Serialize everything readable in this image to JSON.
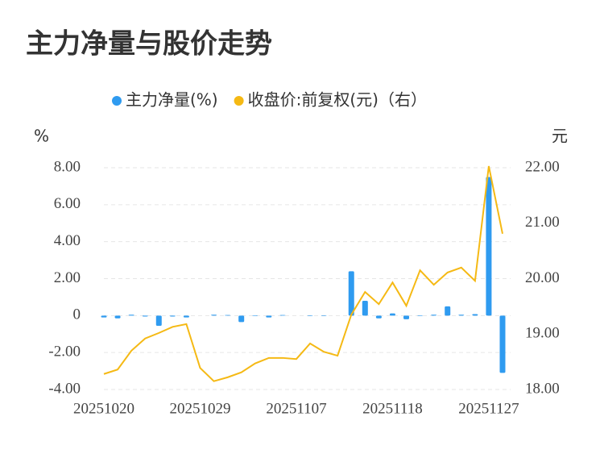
{
  "chart_data": {
    "type": "bar-line",
    "title": "主力净量与股价走势",
    "y_label": "%",
    "y2_label": "元",
    "categories": [
      "20251020",
      null,
      null,
      null,
      null,
      null,
      null,
      "20251029",
      null,
      null,
      null,
      null,
      null,
      null,
      "20251107",
      null,
      null,
      null,
      null,
      null,
      null,
      "20251118",
      null,
      null,
      null,
      null,
      null,
      null,
      "20251127",
      null
    ],
    "series": [
      {
        "name": "主力净量(%)",
        "type": "bar",
        "color": "#2f9bf0",
        "values": [
          -0.1,
          -0.15,
          0.05,
          -0.05,
          -0.55,
          -0.05,
          -0.1,
          0,
          0.05,
          0.03,
          -0.35,
          -0.03,
          -0.1,
          0.03,
          0,
          -0.03,
          -0.03,
          0,
          2.4,
          0.8,
          -0.15,
          0.12,
          -0.2,
          -0.03,
          0.05,
          0.5,
          0.05,
          0.08,
          7.5,
          -3.1
        ]
      },
      {
        "name": "收盘价:前复权(元)（右）",
        "type": "line",
        "axis": "y2",
        "color": "#f5b914",
        "values": [
          18.28,
          18.36,
          18.7,
          18.92,
          19.02,
          19.13,
          19.18,
          18.39,
          18.15,
          18.22,
          18.31,
          18.47,
          18.57,
          18.57,
          18.55,
          18.83,
          18.68,
          18.61,
          19.35,
          19.76,
          19.54,
          19.93,
          19.51,
          20.15,
          19.89,
          20.11,
          20.2,
          19.96,
          22.03,
          20.81
        ]
      }
    ],
    "ylim": [
      -4,
      8
    ],
    "yticks": [
      {
        "value": -4,
        "label": "-4.00"
      },
      {
        "value": -2,
        "label": "-2.00"
      },
      0,
      {
        "value": 2,
        "label": "2.00"
      },
      {
        "value": 4,
        "label": "4.00"
      },
      {
        "value": 6,
        "label": "6.00"
      },
      {
        "value": 8,
        "label": "8.00"
      }
    ],
    "y2lim": [
      18,
      22
    ],
    "y2ticks": [
      {
        "value": 18,
        "label": "18.00"
      },
      {
        "value": 19,
        "label": "19.00"
      },
      {
        "value": 20,
        "label": "20.00"
      },
      {
        "value": 21,
        "label": "21.00"
      },
      {
        "value": 22,
        "label": "22.00"
      }
    ],
    "grid": true,
    "legend": "top"
  }
}
